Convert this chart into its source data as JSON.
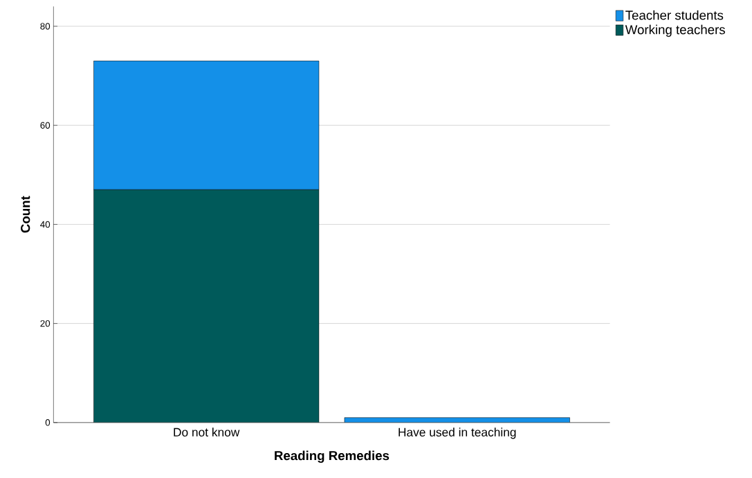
{
  "chart_data": {
    "type": "bar",
    "stacked": true,
    "xlabel": "Reading Remedies",
    "ylabel": "Count",
    "categories": [
      "Do not know",
      "Have used in teaching"
    ],
    "series": [
      {
        "name": "Working teachers",
        "color": "#005a5a",
        "values": [
          47,
          0
        ]
      },
      {
        "name": "Teacher students",
        "color": "#1490e8",
        "values": [
          26,
          1
        ]
      }
    ],
    "ylim": [
      0,
      84
    ],
    "yticks": [
      0,
      20,
      40,
      60,
      80
    ],
    "grid": "y",
    "legend": "top right"
  }
}
